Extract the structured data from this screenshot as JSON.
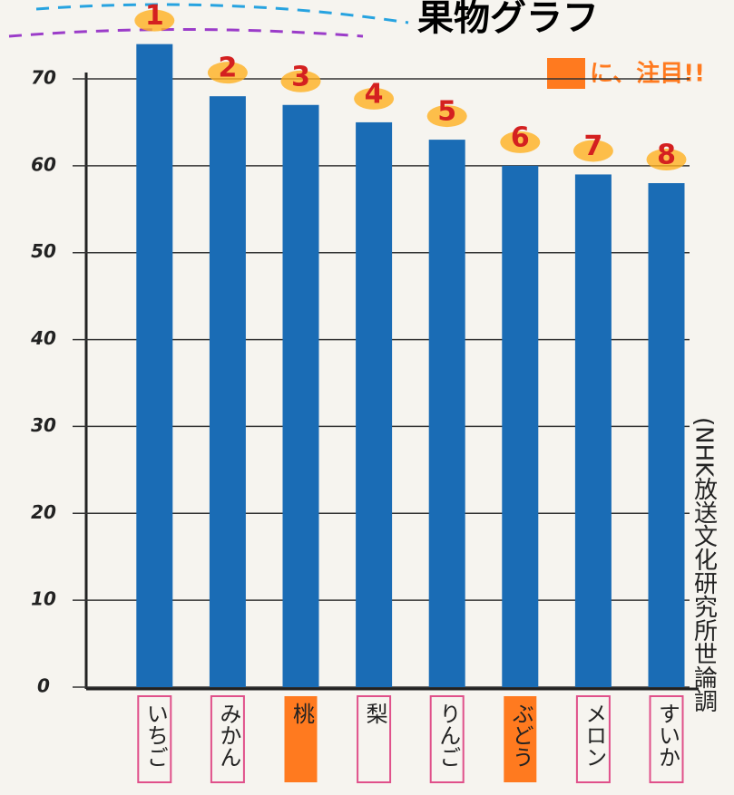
{
  "chart_data": {
    "type": "bar",
    "title": "果物グラフ",
    "note": "に、注目!!",
    "source": "(NHK放送文化研究所世論調",
    "categories": [
      "いちご",
      "みかん",
      "桃",
      "梨",
      "りんご",
      "ぶどう",
      "メロン",
      "すいか"
    ],
    "values": [
      74,
      68,
      67,
      65,
      63,
      60,
      59,
      58
    ],
    "ranks": [
      1,
      2,
      3,
      4,
      5,
      6,
      7,
      8
    ],
    "highlight": [
      false,
      false,
      true,
      false,
      false,
      true,
      false,
      false
    ],
    "color": "#1a6cb5",
    "highlight_color": "#ff7a1f",
    "ylim": [
      0,
      70
    ],
    "yticks": [
      0,
      10,
      20,
      30,
      40,
      50,
      60,
      70
    ],
    "grid": true
  }
}
